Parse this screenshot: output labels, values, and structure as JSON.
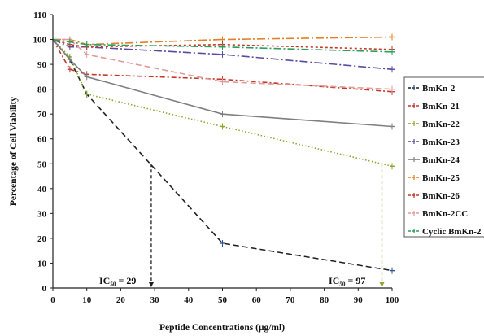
{
  "chart_data": {
    "type": "line",
    "title": "",
    "xlabel": "Peptide Concentrations (μg/ml)",
    "ylabel": "Percentage of Cell Viability",
    "xlim": [
      0,
      100
    ],
    "ylim": [
      0,
      110
    ],
    "xticks": [
      "0",
      "10",
      "20",
      "30",
      "40",
      "50",
      "60",
      "70",
      "80",
      "90",
      "100"
    ],
    "yticks": [
      "0",
      "10",
      "20",
      "30",
      "40",
      "50",
      "60",
      "70",
      "80",
      "90",
      "100",
      "110"
    ],
    "grid": false,
    "legend_position": "right",
    "series": [
      {
        "name": "BmKn-2",
        "color": "#1f1f1f",
        "dash": "7,4",
        "marker_color": "#2f5597",
        "x": [
          0,
          5,
          10,
          50,
          100
        ],
        "y": [
          100,
          92,
          78,
          18,
          7
        ]
      },
      {
        "name": "BmKn-21",
        "color": "#c0392b",
        "dash": "6,3,2,3",
        "marker_color": "#c0392b",
        "x": [
          0,
          5,
          10,
          50,
          100
        ],
        "y": [
          100,
          88,
          86,
          84,
          79
        ]
      },
      {
        "name": "BmKn-22",
        "color": "#8aa832",
        "dash": "1.5,2.5",
        "marker_color": "#8aa832",
        "x": [
          0,
          5,
          10,
          50,
          100
        ],
        "y": [
          100,
          93,
          78,
          65,
          49
        ]
      },
      {
        "name": "BmKn-23",
        "color": "#5b4aa0",
        "dash": "10,3,2,3",
        "marker_color": "#5b4aa0",
        "x": [
          0,
          5,
          10,
          50,
          100
        ],
        "y": [
          100,
          97,
          97,
          94,
          88
        ]
      },
      {
        "name": "BmKn-24",
        "color": "#7f7f7f",
        "dash": "",
        "marker_color": "#7f7f7f",
        "x": [
          0,
          5,
          10,
          50,
          100
        ],
        "y": [
          100,
          92,
          85,
          70,
          65
        ]
      },
      {
        "name": "BmKn-25",
        "color": "#e67e22",
        "dash": "10,3,2,3",
        "marker_color": "#e67e22",
        "x": [
          0,
          5,
          10,
          50,
          100
        ],
        "y": [
          100,
          100,
          98,
          100,
          101
        ]
      },
      {
        "name": "BmKn-26",
        "color": "#c0392b",
        "dash": "3,3",
        "marker_color": "#c0392b",
        "x": [
          0,
          5,
          10,
          50,
          100
        ],
        "y": [
          100,
          98,
          97,
          98,
          96
        ]
      },
      {
        "name": "BmKn-2CC",
        "color": "#e39a9a",
        "dash": "7,4",
        "marker_color": "#e39a9a",
        "x": [
          0,
          5,
          10,
          50,
          100
        ],
        "y": [
          100,
          100,
          94,
          83,
          80
        ]
      },
      {
        "name": "Cyclic BmKn-2",
        "color": "#2e9e5b",
        "dash": "9,3,2,3",
        "marker_color": "#2e9e5b",
        "x": [
          0,
          5,
          10,
          50,
          100
        ],
        "y": [
          100,
          99,
          98,
          97,
          95
        ]
      }
    ],
    "annotations": [
      {
        "text": "IC₅₀ = 29",
        "x": 29,
        "y": 50,
        "color": "#1f1f1f"
      },
      {
        "text": "IC₅₀ = 97",
        "x": 97,
        "y": 50,
        "color": "#8aa832"
      }
    ]
  }
}
